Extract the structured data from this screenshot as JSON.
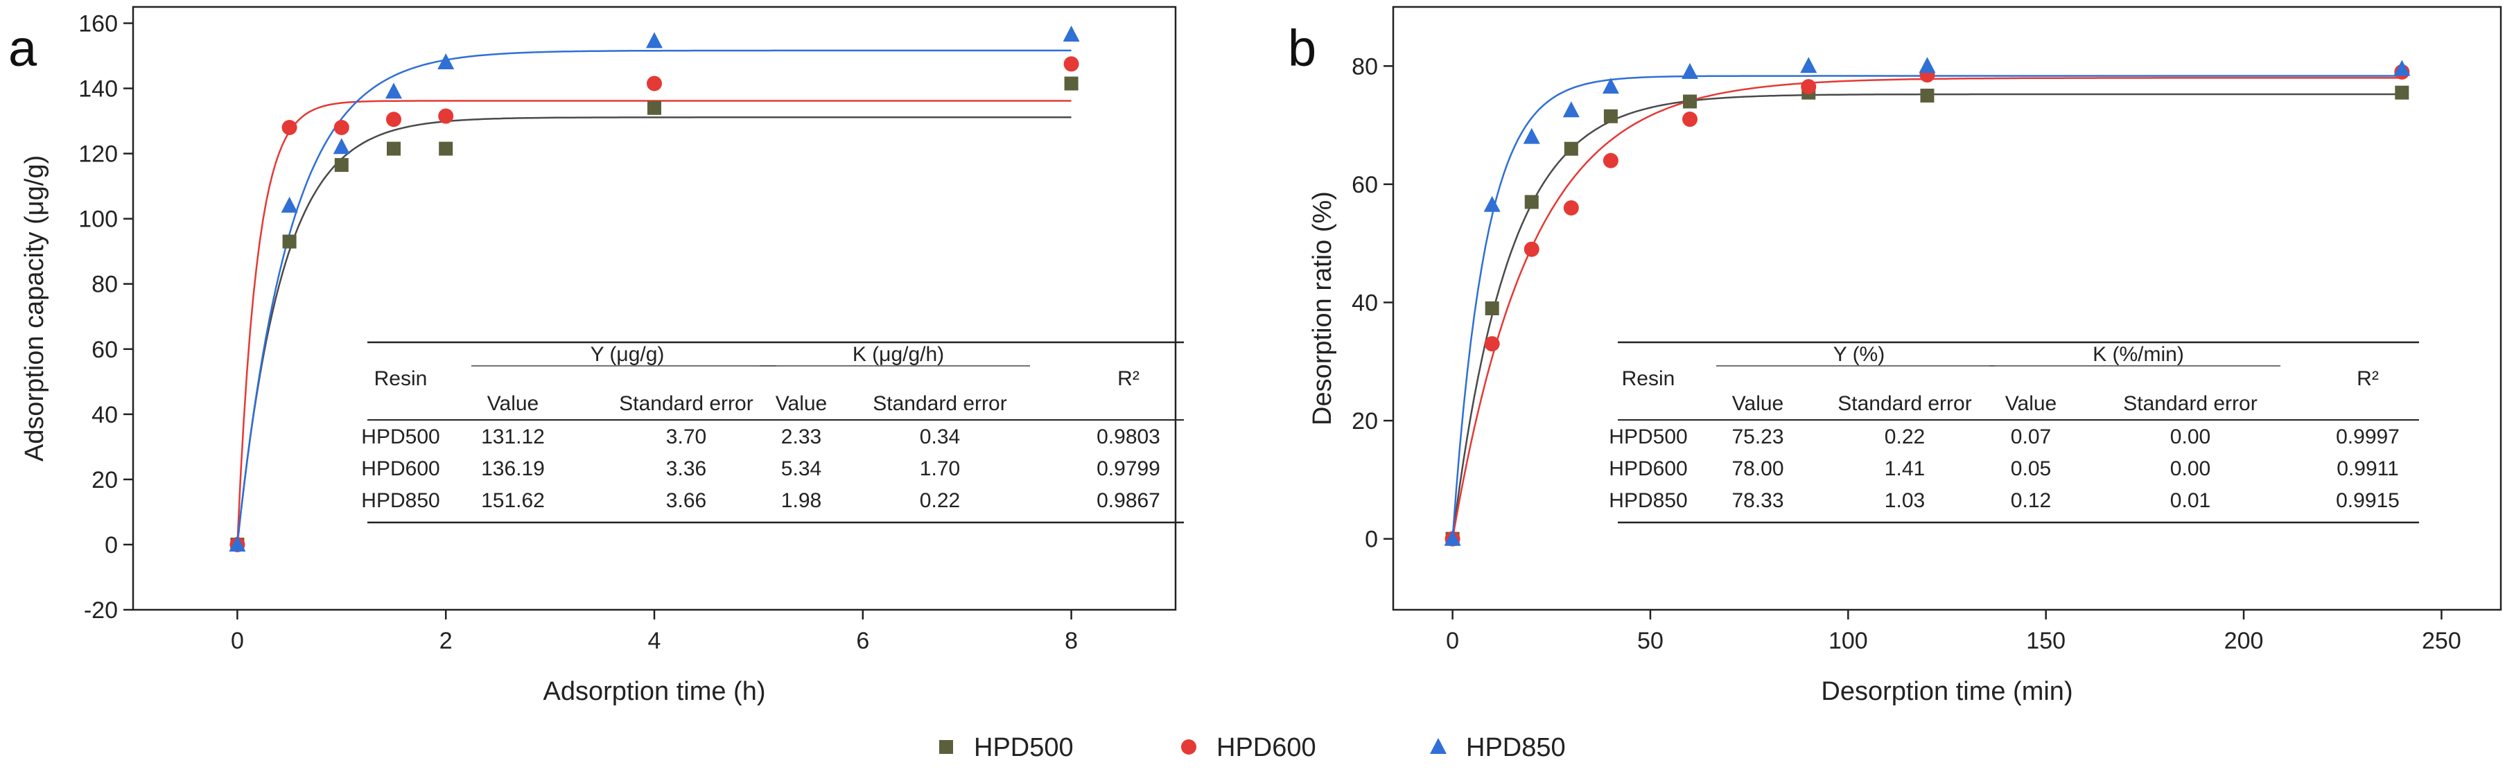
{
  "colors": {
    "hpd500": "#5c5f3c",
    "hpd600": "#e53935",
    "hpd850": "#2f6fd6",
    "fit_hpd500": "#4a4a4a",
    "fit_hpd600": "#e53935",
    "fit_hpd850": "#2f6fd6",
    "axis": "#222222"
  },
  "legend": {
    "items": [
      {
        "label": "HPD500",
        "marker": "square",
        "color": "#5c5f3c"
      },
      {
        "label": "HPD600",
        "marker": "circle",
        "color": "#e53935"
      },
      {
        "label": "HPD850",
        "marker": "triangle",
        "color": "#2f6fd6"
      }
    ]
  },
  "chart_data": [
    {
      "panel": "a",
      "type": "scatter",
      "xlabel": "Adsorption time (h)",
      "ylabel": "Adsorption capacity (μg/g)",
      "xlim": [
        -1,
        9
      ],
      "ylim": [
        -20,
        165
      ],
      "xticks": [
        0,
        2,
        4,
        6,
        8
      ],
      "yticks": [
        -20,
        0,
        20,
        40,
        60,
        80,
        100,
        120,
        140,
        160
      ],
      "x_points": [
        0,
        0.5,
        1,
        1.5,
        2,
        4,
        8
      ],
      "series": [
        {
          "name": "HPD500",
          "marker": "square",
          "y": [
            0,
            93,
            116.5,
            121.5,
            121.5,
            134,
            141.5
          ],
          "fit": {
            "Y": 131.12,
            "K": 2.33
          }
        },
        {
          "name": "HPD600",
          "marker": "circle",
          "y": [
            0,
            128,
            128,
            130.5,
            131.5,
            141.5,
            147.5
          ],
          "fit": {
            "Y": 136.19,
            "K": 5.34
          }
        },
        {
          "name": "HPD850",
          "marker": "triangle",
          "y": [
            0,
            104,
            122,
            139,
            148,
            154.5,
            156.5
          ],
          "fit": {
            "Y": 151.62,
            "K": 1.98
          }
        }
      ],
      "fit_x_max": 8,
      "table": {
        "group_headers": [
          "Y (μg/g)",
          "K (μg/g/h)"
        ],
        "col_resin": "Resin",
        "col_r2": "R²",
        "sub_headers": [
          "Value",
          "Standard error",
          "Value",
          "Standard error"
        ],
        "rows": [
          [
            "HPD500",
            "131.12",
            "3.70",
            "2.33",
            "0.34",
            "0.9803"
          ],
          [
            "HPD600",
            "136.19",
            "3.36",
            "5.34",
            "1.70",
            "0.9799"
          ],
          [
            "HPD850",
            "151.62",
            "3.66",
            "1.98",
            "0.22",
            "0.9867"
          ]
        ]
      }
    },
    {
      "panel": "b",
      "type": "scatter",
      "xlabel": "Desorption time (min)",
      "ylabel": "Desorption ratio (%)",
      "xlim": [
        -15,
        265
      ],
      "ylim": [
        -12,
        90
      ],
      "xticks": [
        0,
        50,
        100,
        150,
        200,
        250
      ],
      "yticks": [
        0,
        20,
        40,
        60,
        80
      ],
      "x_points": [
        0,
        10,
        20,
        30,
        40,
        60,
        90,
        120,
        240
      ],
      "series": [
        {
          "name": "HPD500",
          "marker": "square",
          "y": [
            0,
            39,
            57,
            66,
            71.5,
            74,
            75.5,
            75,
            75.5
          ],
          "fit": {
            "Y": 75.23,
            "K": 0.07
          }
        },
        {
          "name": "HPD600",
          "marker": "circle",
          "y": [
            0,
            33,
            49,
            56,
            64,
            71,
            76.5,
            78.5,
            79
          ],
          "fit": {
            "Y": 78.0,
            "K": 0.05
          }
        },
        {
          "name": "HPD850",
          "marker": "triangle",
          "y": [
            0,
            56.5,
            68,
            72.5,
            76.5,
            79,
            80,
            80,
            79.5
          ],
          "fit": {
            "Y": 78.33,
            "K": 0.12
          }
        }
      ],
      "fit_x_max": 240,
      "table": {
        "group_headers": [
          "Y (%)",
          "K (%/min)"
        ],
        "col_resin": "Resin",
        "col_r2": "R²",
        "sub_headers": [
          "Value",
          "Standard error",
          "Value",
          "Standard error"
        ],
        "rows": [
          [
            "HPD500",
            "75.23",
            "0.22",
            "0.07",
            "0.00",
            "0.9997"
          ],
          [
            "HPD600",
            "78.00",
            "1.41",
            "0.05",
            "0.00",
            "0.9911"
          ],
          [
            "HPD850",
            "78.33",
            "1.03",
            "0.12",
            "0.01",
            "0.9915"
          ]
        ]
      }
    }
  ]
}
